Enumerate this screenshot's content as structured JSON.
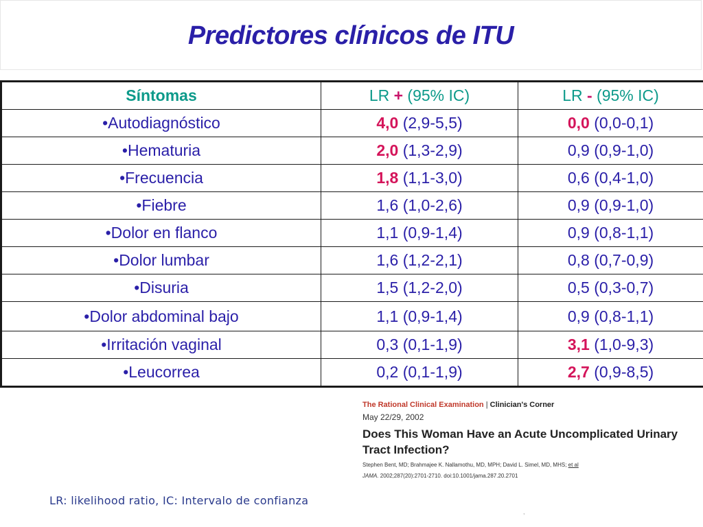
{
  "slide": {
    "title": "Predictores clínicos de ITU"
  },
  "table": {
    "headers": {
      "col1": "Síntomas",
      "col2": {
        "pre": "LR ",
        "op": "+",
        "post": " (95% IC)"
      },
      "col3": {
        "pre": "LR ",
        "op": "-",
        "post": " (95% IC)"
      }
    },
    "rows": [
      {
        "symptom": "•Autodiagnóstico",
        "lr_pos": {
          "value": "4,0",
          "ci": " (2,9-5,5)",
          "highlight": true
        },
        "lr_neg": {
          "value": "0,0",
          "ci": " (0,0-0,1)",
          "highlight": true
        }
      },
      {
        "symptom": "•Hematuria",
        "lr_pos": {
          "value": "2,0",
          "ci": " (1,3-2,9)",
          "highlight": true
        },
        "lr_neg": {
          "value": "0,9",
          "ci": " (0,9-1,0)",
          "highlight": false
        }
      },
      {
        "symptom": "•Frecuencia",
        "lr_pos": {
          "value": "1,8",
          "ci": " (1,1-3,0)",
          "highlight": true
        },
        "lr_neg": {
          "value": "0,6",
          "ci": " (0,4-1,0)",
          "highlight": false
        }
      },
      {
        "symptom": "•Fiebre",
        "lr_pos": {
          "value": "1,6",
          "ci": " (1,0-2,6)",
          "highlight": false
        },
        "lr_neg": {
          "value": "0,9",
          "ci": " (0,9-1,0)",
          "highlight": false
        }
      },
      {
        "symptom": "•Dolor en flanco",
        "lr_pos": {
          "value": "1,1",
          "ci": " (0,9-1,4)",
          "highlight": false
        },
        "lr_neg": {
          "value": "0,9",
          "ci": " (0,8-1,1)",
          "highlight": false
        }
      },
      {
        "symptom": "•Dolor lumbar",
        "lr_pos": {
          "value": "1,6",
          "ci": " (1,2-2,1)",
          "highlight": false
        },
        "lr_neg": {
          "value": "0,8",
          "ci": " (0,7-0,9)",
          "highlight": false
        }
      },
      {
        "symptom": "•Disuria",
        "lr_pos": {
          "value": "1,5",
          "ci": " (1,2-2,0)",
          "highlight": false
        },
        "lr_neg": {
          "value": "0,5",
          "ci": " (0,3-0,7)",
          "highlight": false
        }
      },
      {
        "symptom": "•Dolor abdominal bajo",
        "lr_pos": {
          "value": "1,1",
          "ci": " (0,9-1,4)",
          "highlight": false
        },
        "lr_neg": {
          "value": "0,9",
          "ci": " (0,8-1,1)",
          "highlight": false
        }
      },
      {
        "symptom": "•Irritación vaginal",
        "lr_pos": {
          "value": "0,3",
          "ci": " (0,1-1,9)",
          "highlight": false
        },
        "lr_neg": {
          "value": "3,1",
          "ci": " (1,0-9,3)",
          "highlight": true
        }
      },
      {
        "symptom": "•Leucorrea",
        "lr_pos": {
          "value": "0,2",
          "ci": " (0,1-1,9)",
          "highlight": false
        },
        "lr_neg": {
          "value": "2,7",
          "ci": " (0,9-8,5)",
          "highlight": true
        }
      }
    ]
  },
  "reference": {
    "series": "The Rational Clinical Examination",
    "separator": " | ",
    "section": "Clinician's Corner",
    "date": "May 22/29, 2002",
    "title": "Does This Woman Have an Acute Uncomplicated Urinary Tract Infection?",
    "authors": "Stephen Bent, MD; Brahmajee K. Nallamothu, MD, MPH; David L. Simel, MD, MHS; ",
    "etal": "et al",
    "journal": "JAMA.",
    "citation": " 2002;287(20):2701-2710. doi:10.1001/jama.287.20.2701"
  },
  "footnote": "LR: likelihood ratio, IC: Intervalo de confianza",
  "colors": {
    "title": "#2a1fa8",
    "header": "#0d9a8a",
    "highlight": "#d4145a",
    "body_text": "#2a1fa8"
  }
}
